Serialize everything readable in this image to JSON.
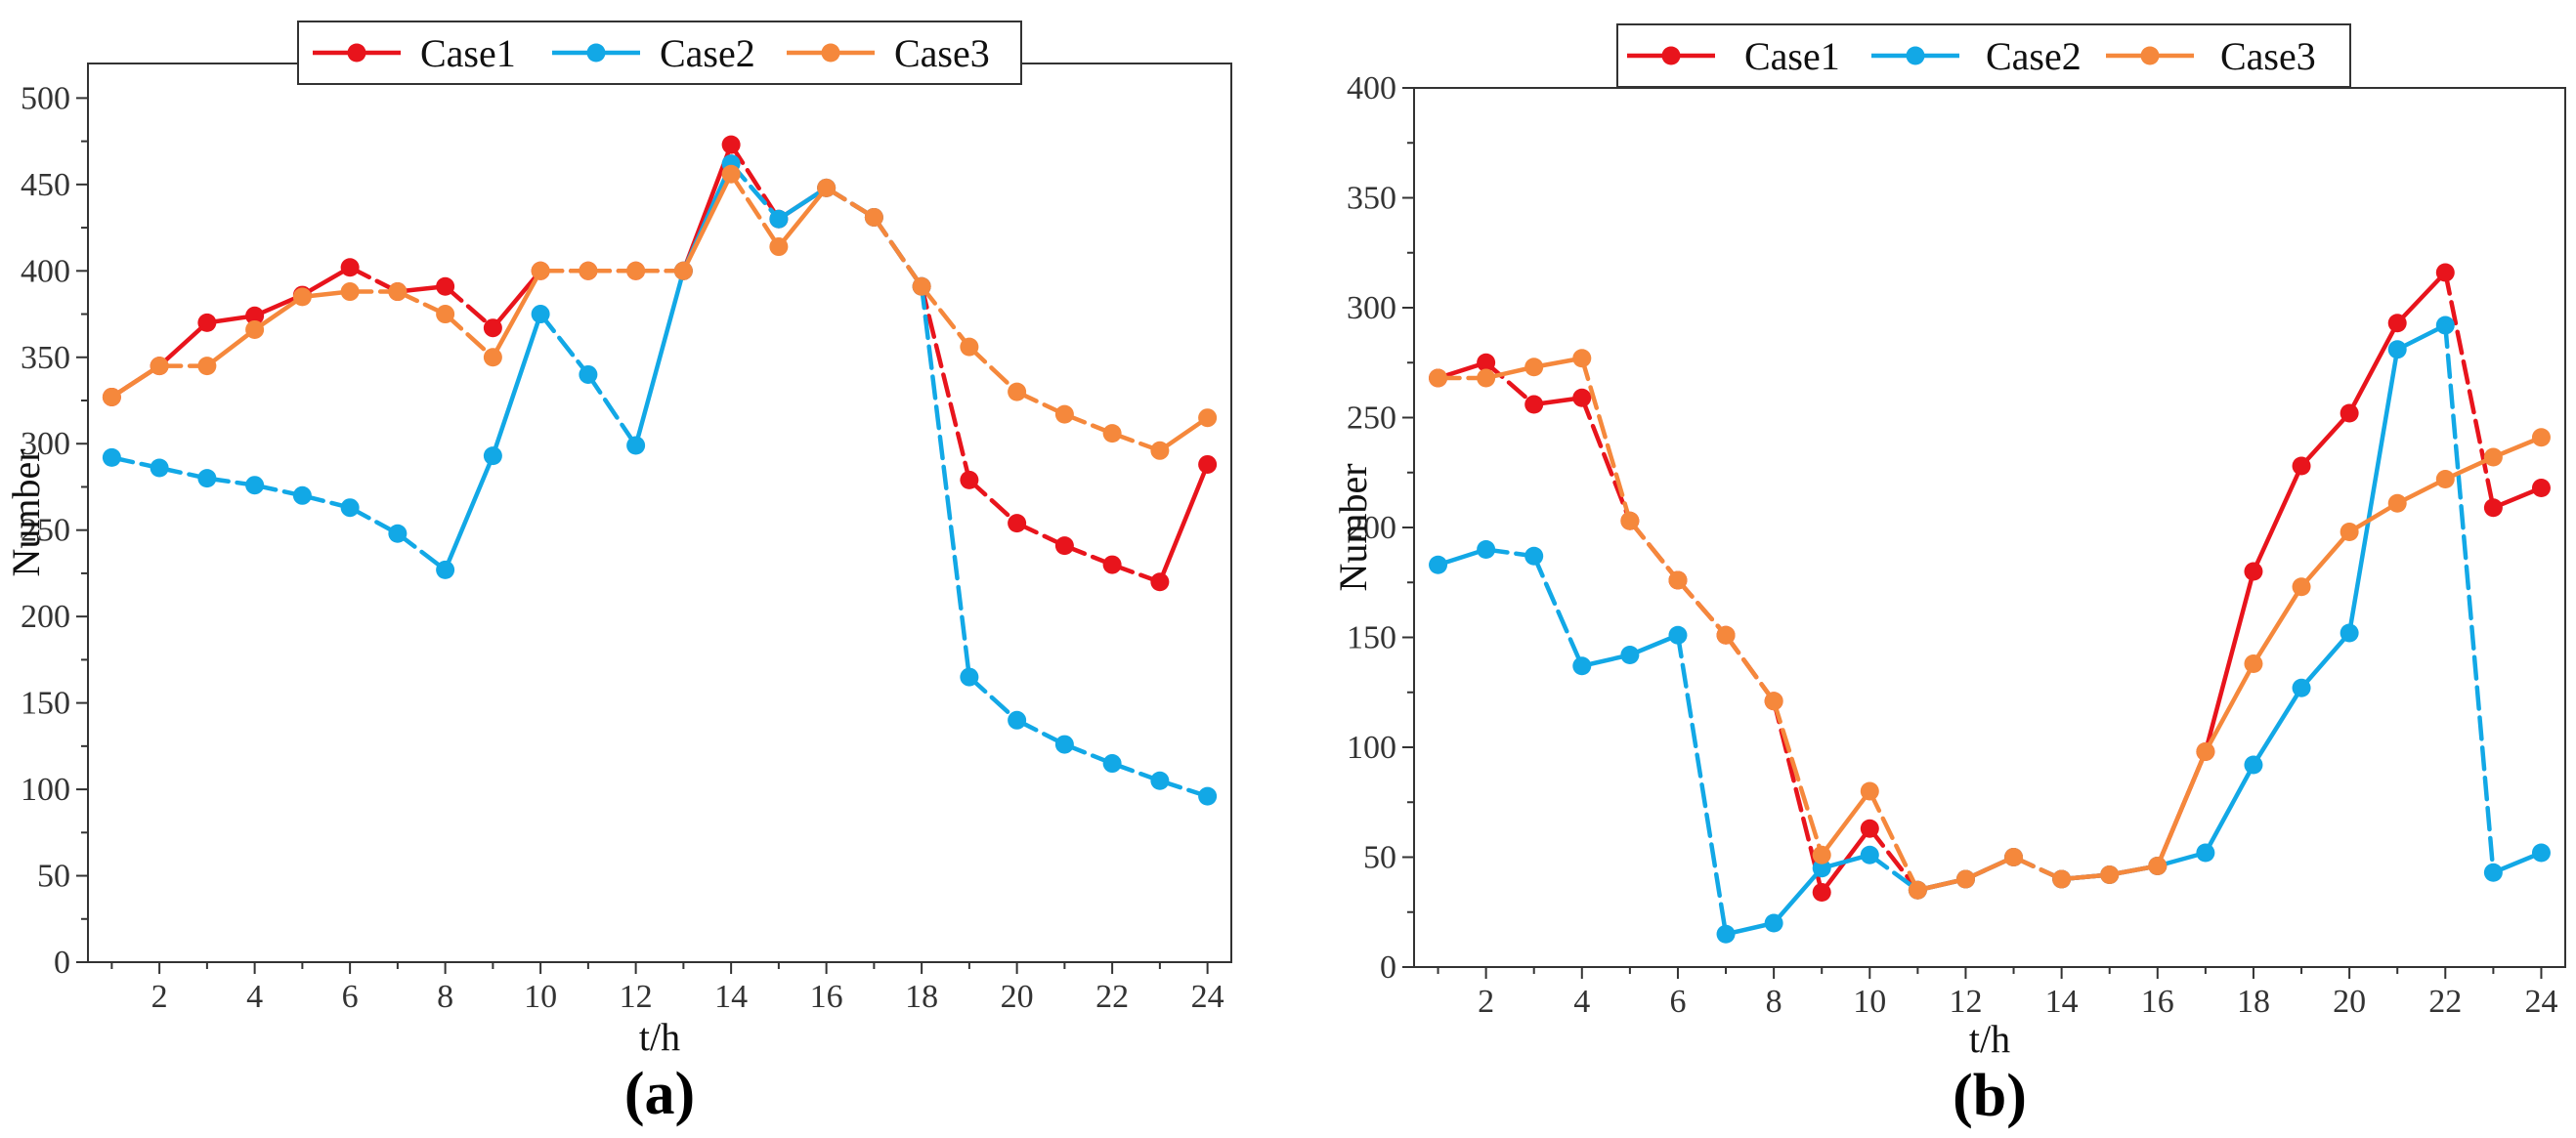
{
  "chart_data": [
    {
      "type": "line",
      "panel_label": "(a)",
      "xlabel": "t/h",
      "ylabel": "Number",
      "xlim": [
        0.5,
        24.5
      ],
      "ylim": [
        0,
        520
      ],
      "xticks": [
        2,
        4,
        6,
        8,
        10,
        12,
        14,
        16,
        18,
        20,
        22,
        24
      ],
      "yticks": [
        0,
        50,
        100,
        150,
        200,
        250,
        300,
        350,
        400,
        450,
        500
      ],
      "legend_position": "top",
      "x": [
        1,
        2,
        3,
        4,
        5,
        6,
        7,
        8,
        9,
        10,
        11,
        12,
        13,
        14,
        15,
        16,
        17,
        18,
        19,
        20,
        21,
        22,
        23,
        24
      ],
      "series": [
        {
          "name": "Case1",
          "color": "#e8141c",
          "values": [
            327,
            345,
            370,
            374,
            386,
            402,
            388,
            391,
            367,
            400,
            400,
            400,
            400,
            473,
            430,
            448,
            431,
            391,
            279,
            254,
            241,
            230,
            220,
            288
          ]
        },
        {
          "name": "Case2",
          "color": "#12a8e6",
          "values": [
            292,
            286,
            280,
            276,
            270,
            263,
            248,
            227,
            293,
            375,
            340,
            299,
            400,
            462,
            430,
            448,
            431,
            391,
            165,
            140,
            126,
            115,
            105,
            96
          ]
        },
        {
          "name": "Case3",
          "color": "#f5883c",
          "values": [
            327,
            345,
            345,
            366,
            385,
            388,
            388,
            375,
            350,
            400,
            400,
            400,
            400,
            456,
            414,
            448,
            431,
            391,
            356,
            330,
            317,
            306,
            296,
            315
          ]
        }
      ]
    },
    {
      "type": "line",
      "panel_label": "(b)",
      "xlabel": "t/h",
      "ylabel": "Number",
      "xlim": [
        0.5,
        24.5
      ],
      "ylim": [
        0,
        400
      ],
      "xticks": [
        2,
        4,
        6,
        8,
        10,
        12,
        14,
        16,
        18,
        20,
        22,
        24
      ],
      "yticks": [
        0,
        50,
        100,
        150,
        200,
        250,
        300,
        350,
        400
      ],
      "legend_position": "top",
      "x": [
        1,
        2,
        3,
        4,
        5,
        6,
        7,
        8,
        9,
        10,
        11,
        12,
        13,
        14,
        15,
        16,
        17,
        18,
        19,
        20,
        21,
        22,
        23,
        24
      ],
      "series": [
        {
          "name": "Case1",
          "color": "#e8141c",
          "values": [
            268,
            275,
            256,
            259,
            203,
            176,
            151,
            121,
            34,
            63,
            35,
            40,
            50,
            40,
            42,
            46,
            98,
            180,
            228,
            252,
            293,
            316,
            209,
            218
          ]
        },
        {
          "name": "Case2",
          "color": "#12a8e6",
          "values": [
            183,
            190,
            187,
            137,
            142,
            151,
            15,
            20,
            45,
            51,
            35,
            40,
            50,
            40,
            42,
            46,
            52,
            92,
            127,
            152,
            281,
            292,
            43,
            52
          ]
        },
        {
          "name": "Case3",
          "color": "#f5883c",
          "values": [
            268,
            268,
            273,
            277,
            203,
            176,
            151,
            121,
            51,
            80,
            35,
            40,
            50,
            40,
            42,
            46,
            98,
            138,
            173,
            198,
            211,
            222,
            232,
            241
          ]
        }
      ]
    }
  ]
}
